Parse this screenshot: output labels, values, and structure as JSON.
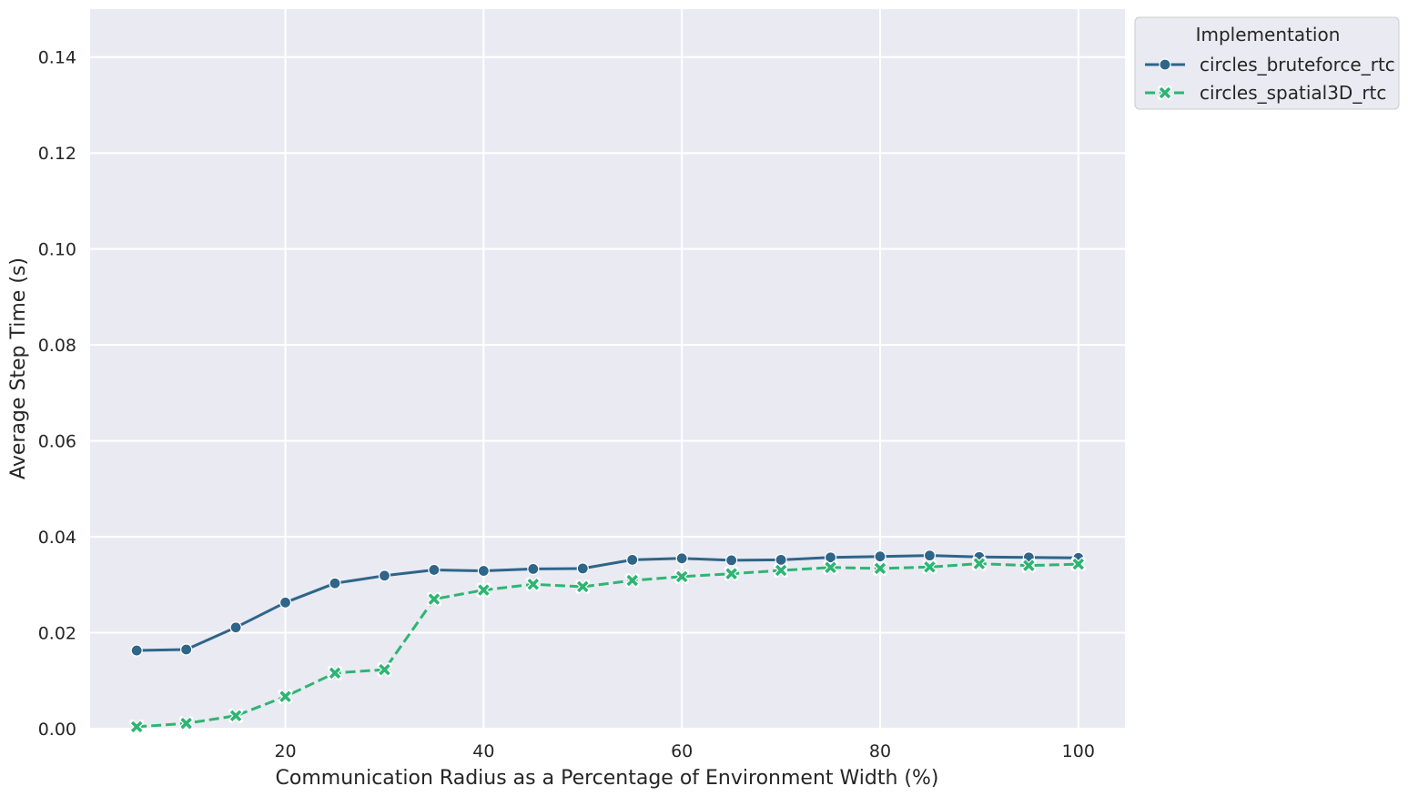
{
  "chart_data": {
    "type": "line",
    "title": "",
    "xlabel": "Communication Radius as a Percentage of Environment Width (%)",
    "ylabel": "Average Step Time (s)",
    "xlim": [
      0.3,
      104.7
    ],
    "ylim": [
      0,
      0.15
    ],
    "xticks": [
      20,
      40,
      60,
      80,
      100
    ],
    "xtick_labels": [
      "20",
      "40",
      "60",
      "80",
      "100"
    ],
    "yticks": [
      0,
      0.02,
      0.04,
      0.06,
      0.08,
      0.1,
      0.12,
      0.14
    ],
    "ytick_labels": [
      "0.00",
      "0.02",
      "0.04",
      "0.06",
      "0.08",
      "0.10",
      "0.12",
      "0.14"
    ],
    "grid": true,
    "background": "#eaeaf2",
    "legend": {
      "title": "Implementation",
      "placement": "outside-top-right"
    },
    "x": [
      5,
      10,
      15,
      20,
      25,
      30,
      35,
      40,
      45,
      50,
      55,
      60,
      65,
      70,
      75,
      80,
      85,
      90,
      95,
      100
    ],
    "series": [
      {
        "name": "circles_bruteforce_rtc",
        "color": "#2e6589",
        "marker": "circle",
        "linestyle": "solid",
        "values": [
          0.0163,
          0.0165,
          0.0211,
          0.0263,
          0.0303,
          0.0319,
          0.0331,
          0.0329,
          0.0333,
          0.0334,
          0.0352,
          0.0355,
          0.0351,
          0.0352,
          0.0357,
          0.0359,
          0.0361,
          0.0358,
          0.0357,
          0.0356
        ]
      },
      {
        "name": "circles_spatial3D_rtc",
        "color": "#2eb574",
        "marker": "x",
        "linestyle": "dashed",
        "values": [
          0.0004,
          0.0011,
          0.0027,
          0.0067,
          0.0116,
          0.0123,
          0.027,
          0.0289,
          0.0301,
          0.0296,
          0.0309,
          0.0317,
          0.0323,
          0.033,
          0.0336,
          0.0334,
          0.0337,
          0.0344,
          0.034,
          0.0343
        ]
      }
    ]
  }
}
